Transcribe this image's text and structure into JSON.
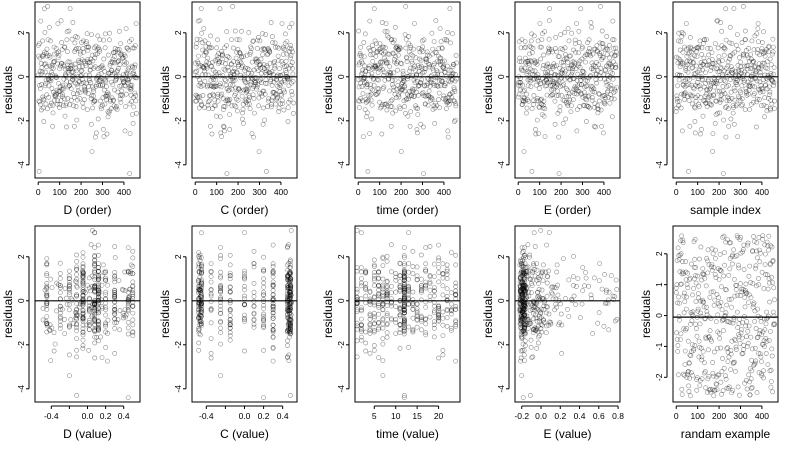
{
  "chart_data": [
    {
      "type": "scatter",
      "xlabel": "D (order)",
      "ylabel": "residuals",
      "xlim": [
        -15,
        475
      ],
      "ylim": [
        -4.6,
        3.4
      ],
      "xticks": [
        0,
        100,
        200,
        300,
        400
      ],
      "yticks": [
        -4,
        -2,
        0,
        2
      ],
      "hline": 0,
      "grid": false,
      "gen": "order"
    },
    {
      "type": "scatter",
      "xlabel": "C (order)",
      "ylabel": "residuals",
      "xlim": [
        -15,
        475
      ],
      "ylim": [
        -4.6,
        3.4
      ],
      "xticks": [
        0,
        100,
        200,
        300,
        400
      ],
      "yticks": [
        -4,
        -2,
        0,
        2
      ],
      "hline": 0,
      "grid": false,
      "gen": "order"
    },
    {
      "type": "scatter",
      "xlabel": "time (order)",
      "ylabel": "residuals",
      "xlim": [
        -15,
        475
      ],
      "ylim": [
        -4.6,
        3.4
      ],
      "xticks": [
        0,
        100,
        200,
        300,
        400
      ],
      "yticks": [
        -4,
        -2,
        0,
        2
      ],
      "hline": 0,
      "grid": false,
      "gen": "order"
    },
    {
      "type": "scatter",
      "xlabel": "E (order)",
      "ylabel": "residuals",
      "xlim": [
        -15,
        475
      ],
      "ylim": [
        -4.6,
        3.4
      ],
      "xticks": [
        0,
        100,
        200,
        300,
        400
      ],
      "yticks": [
        -4,
        -2,
        0,
        2
      ],
      "hline": 0,
      "grid": false,
      "gen": "order"
    },
    {
      "type": "scatter",
      "xlabel": "sample index",
      "ylabel": "residuals",
      "xlim": [
        -15,
        475
      ],
      "ylim": [
        -4.6,
        3.4
      ],
      "xticks": [
        0,
        100,
        200,
        300,
        400
      ],
      "yticks": [
        -4,
        -2,
        0,
        2
      ],
      "hline": 0,
      "grid": false,
      "gen": "order"
    },
    {
      "type": "scatter",
      "xlabel": "D (value)",
      "ylabel": "residuals",
      "xlim": [
        -0.58,
        0.58
      ],
      "ylim": [
        -4.6,
        3.4
      ],
      "xticks": [
        -0.4,
        -0.2,
        0.0,
        0.2,
        0.4
      ],
      "xtick_labels": [
        "-0.4",
        "",
        "0.0",
        "0.2",
        "0.4"
      ],
      "yticks": [
        -4,
        -2,
        0,
        2
      ],
      "hline": 0,
      "grid": false,
      "gen": "Dval"
    },
    {
      "type": "scatter",
      "xlabel": "C (value)",
      "ylabel": "residuals",
      "xlim": [
        -0.55,
        0.55
      ],
      "ylim": [
        -4.6,
        3.4
      ],
      "xticks": [
        -0.4,
        -0.2,
        0.0,
        0.2,
        0.4
      ],
      "xtick_labels": [
        "-0.4",
        "",
        "0.0",
        "0.2",
        "0.4"
      ],
      "yticks": [
        -4,
        -2,
        0,
        2
      ],
      "hline": 0,
      "grid": false,
      "gen": "Cval"
    },
    {
      "type": "scatter",
      "xlabel": "time (value)",
      "ylabel": "residuals",
      "xlim": [
        0.5,
        25
      ],
      "ylim": [
        -4.6,
        3.4
      ],
      "xticks": [
        5,
        10,
        15,
        20
      ],
      "yticks": [
        -4,
        -2,
        0,
        2
      ],
      "hline": 0,
      "grid": false,
      "gen": "timeval"
    },
    {
      "type": "scatter",
      "xlabel": "E (value)",
      "ylabel": "residuals",
      "xlim": [
        -0.27,
        0.82
      ],
      "ylim": [
        -4.6,
        3.4
      ],
      "xticks": [
        -0.2,
        0.0,
        0.2,
        0.4,
        0.6,
        0.8
      ],
      "xtick_labels": [
        "-0.2",
        "0.0",
        "0.2",
        "0.4",
        "0.6",
        "0.8"
      ],
      "yticks": [
        -4,
        -2,
        0,
        2
      ],
      "hline": 0,
      "grid": false,
      "gen": "Eval"
    },
    {
      "type": "scatter",
      "xlabel": "randam example",
      "ylabel": "residuals",
      "xlim": [
        -15,
        475
      ],
      "ylim": [
        -2.8,
        2.9
      ],
      "xticks": [
        0,
        100,
        200,
        300,
        400
      ],
      "yticks": [
        -2,
        -1,
        0,
        1,
        2
      ],
      "hline": -0.05,
      "grid": false,
      "gen": "random"
    }
  ]
}
